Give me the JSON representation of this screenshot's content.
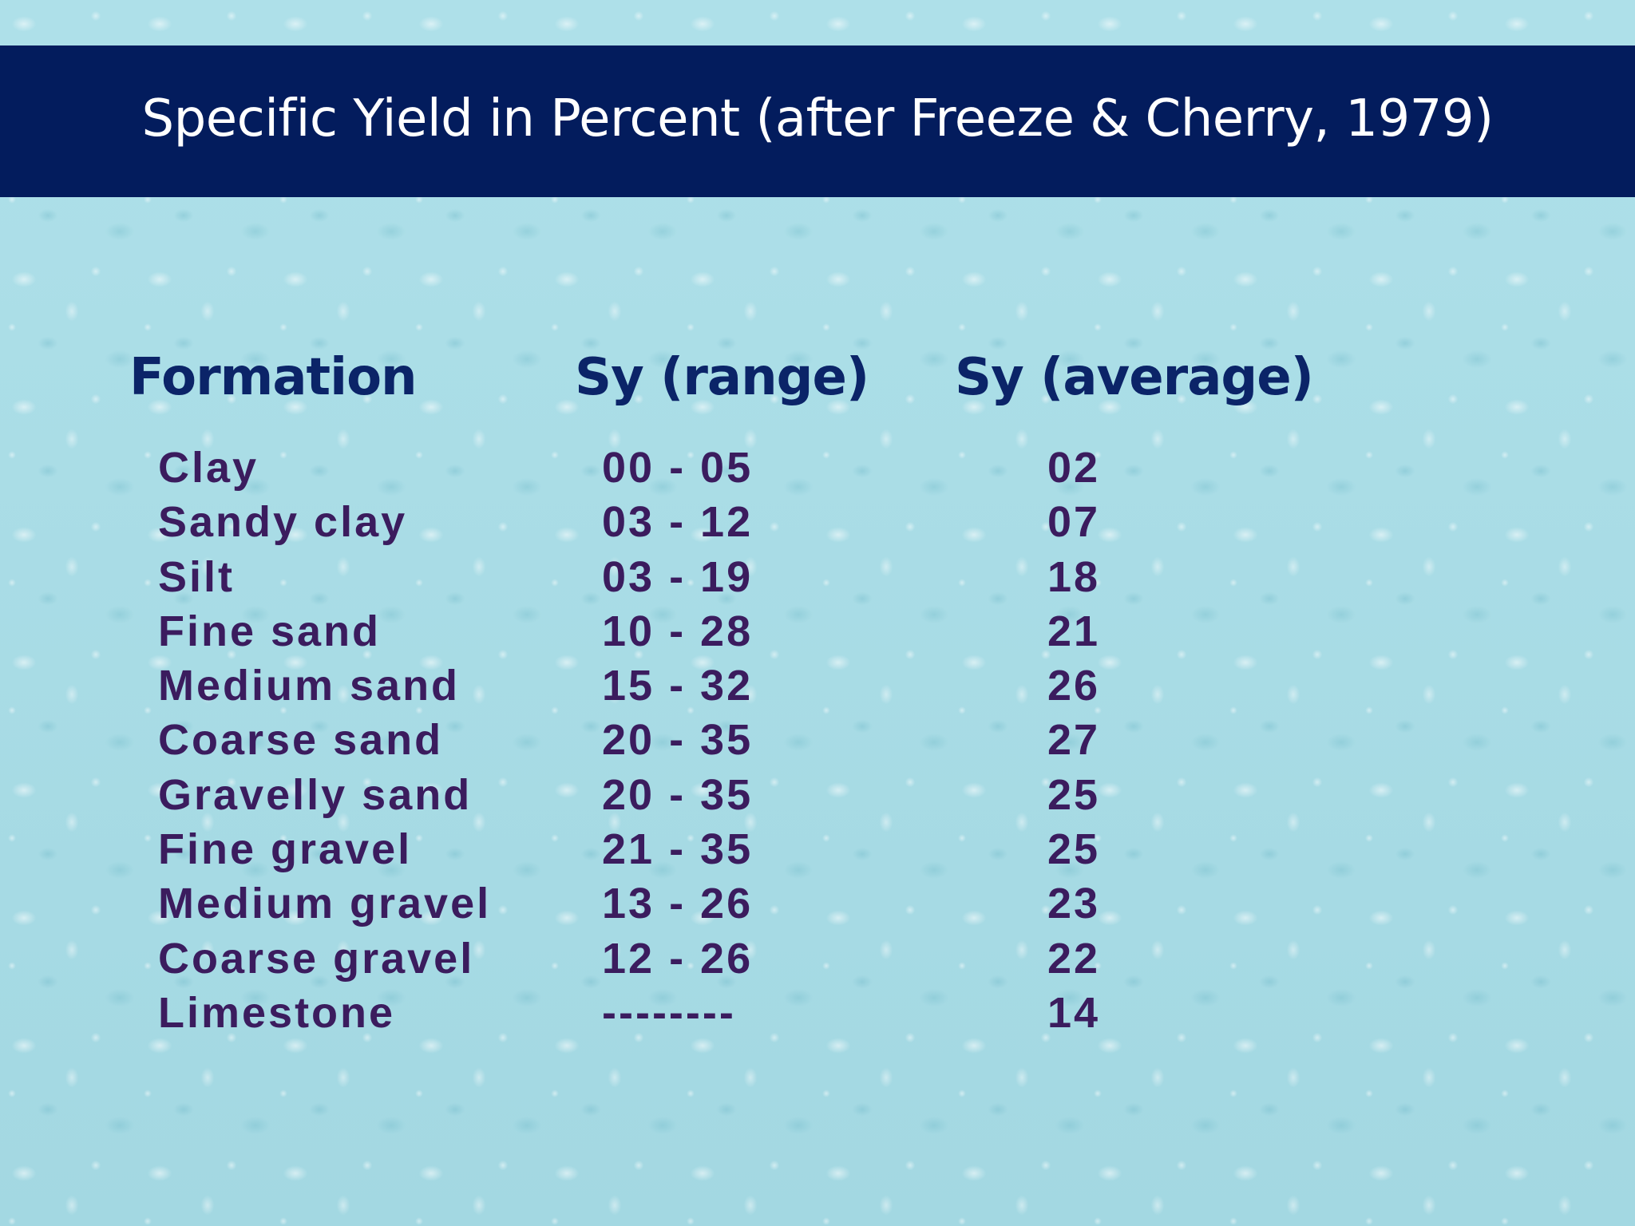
{
  "title": "Specific Yield in Percent (after Freeze & Cherry, 1979)",
  "headers": {
    "formation": "Formation",
    "range": "Sy (range)",
    "average": "Sy (average)"
  },
  "rows": [
    {
      "formation": "Clay",
      "range": "00 - 05",
      "average": "02"
    },
    {
      "formation": "Sandy clay",
      "range": "03 - 12",
      "average": "07"
    },
    {
      "formation": "Silt",
      "range": "03 - 19",
      "average": "18"
    },
    {
      "formation": "Fine sand",
      "range": "10 - 28",
      "average": "21"
    },
    {
      "formation": "Medium sand",
      "range": "15 - 32",
      "average": "26"
    },
    {
      "formation": "Coarse sand",
      "range": "20 - 35",
      "average": "27"
    },
    {
      "formation": "Gravelly sand",
      "range": "20 - 35",
      "average": "25"
    },
    {
      "formation": "Fine gravel",
      "range": "21 - 35",
      "average": "25"
    },
    {
      "formation": "Medium gravel",
      "range": "13 - 26",
      "average": "23"
    },
    {
      "formation": "Coarse gravel",
      "range": "12 - 26",
      "average": "22"
    },
    {
      "formation": "Limestone",
      "range": "--------",
      "average": "14"
    }
  ],
  "colors": {
    "title_bar": "#031c5d",
    "header_text": "#0b2468",
    "row_text": "#3b1c5e",
    "background": "#a9dde6"
  }
}
